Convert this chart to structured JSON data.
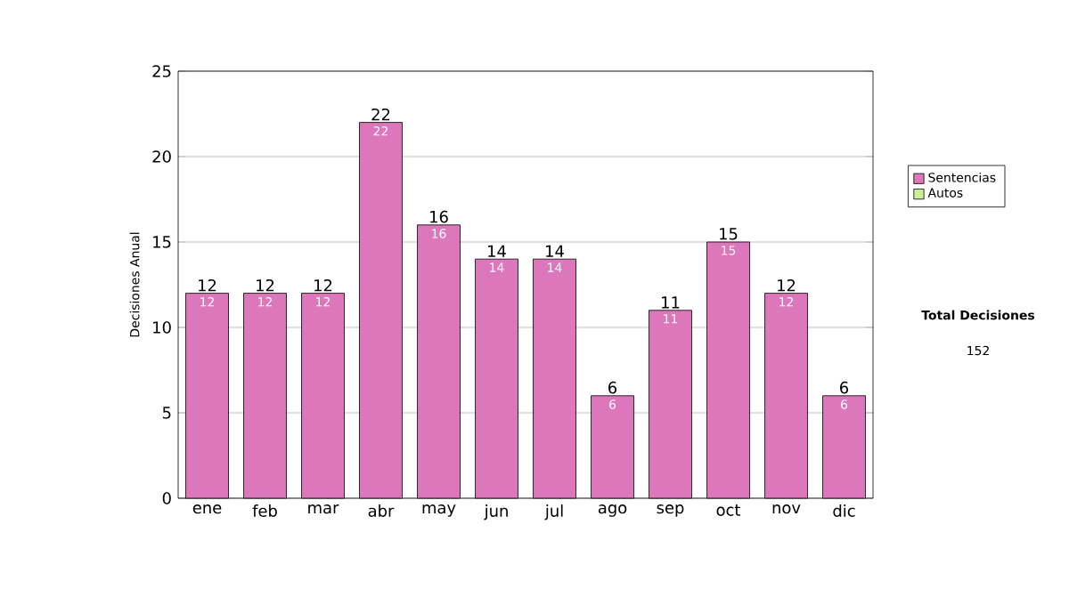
{
  "chart_data": {
    "type": "bar",
    "stacked": true,
    "categories": [
      "ene",
      "feb",
      "mar",
      "abr",
      "may",
      "jun",
      "jul",
      "ago",
      "sep",
      "oct",
      "nov",
      "dic"
    ],
    "series": [
      {
        "name": "Sentencias",
        "color": "#dd77bb",
        "values": [
          12,
          12,
          12,
          22,
          16,
          14,
          14,
          6,
          11,
          15,
          12,
          6
        ],
        "value_labels": [
          "12",
          "12",
          "12",
          "22",
          "16",
          "14",
          "14",
          "6",
          "11",
          "15",
          "12",
          "6"
        ]
      },
      {
        "name": "Autos",
        "color": "#ccee99",
        "values": [
          0,
          0,
          0,
          0,
          0,
          0,
          0,
          0,
          0,
          0,
          0,
          0
        ]
      }
    ],
    "totals": [
      "12",
      "12",
      "12",
      "22",
      "16",
      "14",
      "14",
      "6",
      "11",
      "15",
      "12",
      "6"
    ],
    "ylabel": "Decisiones Anual",
    "ylim": [
      0,
      25
    ],
    "yticks": [
      0,
      5,
      10,
      15,
      20,
      25
    ],
    "grid": "y",
    "legend": "right",
    "annotations": [
      "**Total Decisiones**",
      "152"
    ]
  }
}
